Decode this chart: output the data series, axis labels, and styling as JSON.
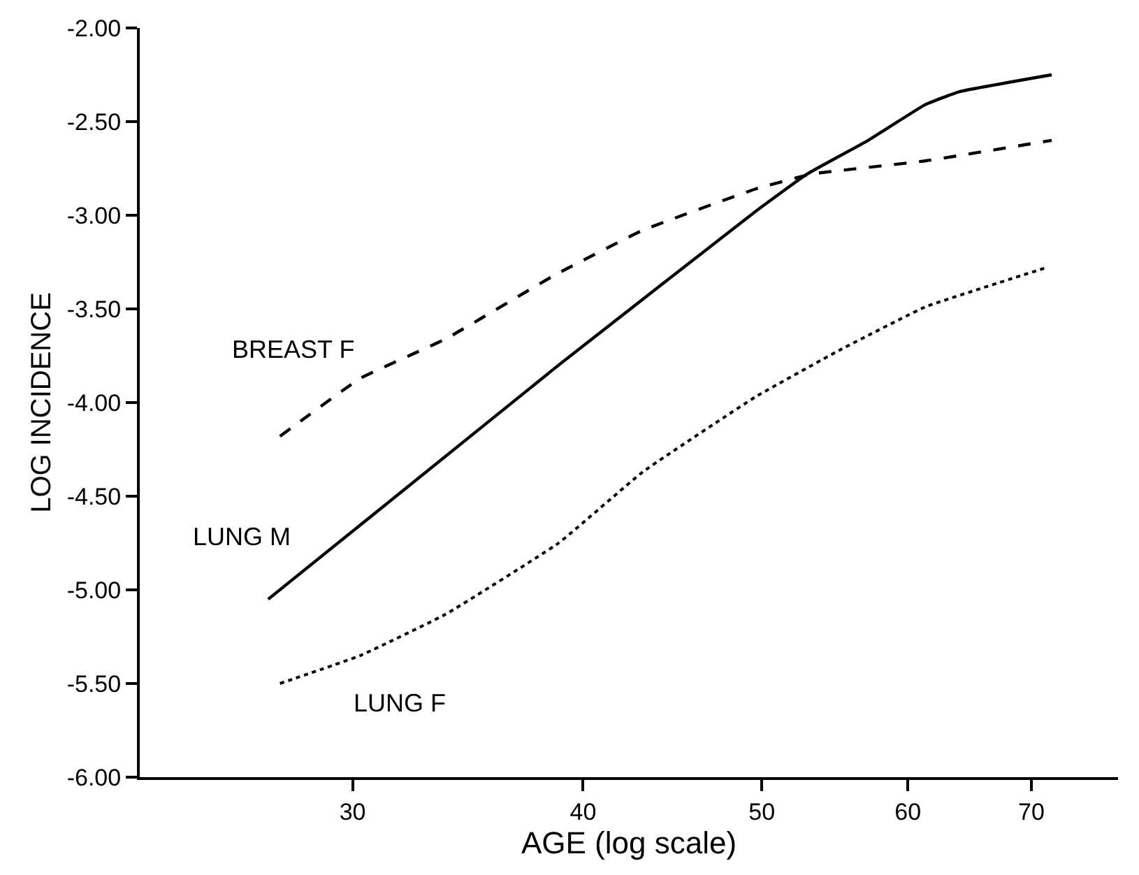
{
  "chart_data": {
    "type": "line",
    "xlabel": "AGE (log scale)",
    "ylabel": "LOG INCIDENCE",
    "log": "x",
    "grid": false,
    "legend": false,
    "marker": "none",
    "xlim": [
      23,
      78
    ],
    "xticks": [
      30,
      40,
      50,
      60,
      70
    ],
    "ylim": [
      -6.0,
      -2.0
    ],
    "yticks": [
      {
        "value": -6.0,
        "label": "-6.00"
      },
      {
        "value": -5.5,
        "label": "-5.50"
      },
      {
        "value": -5.0,
        "label": "-5.00"
      },
      {
        "value": -4.5,
        "label": "-4.50"
      },
      {
        "value": -4.0,
        "label": "-4.00"
      },
      {
        "value": -3.5,
        "label": "-3.50"
      },
      {
        "value": -3.0,
        "label": "-3.00"
      },
      {
        "value": -2.5,
        "label": "-2.50"
      },
      {
        "value": -2.0,
        "label": "-2.00"
      }
    ],
    "series": [
      {
        "name": "LUNG M",
        "color": "#000000",
        "line_style": "solid",
        "x": [
          27.0,
          38.8,
          49.6,
          52.9,
          57.1,
          61.3,
          64.0,
          71.8
        ],
        "values": [
          -5.05,
          -3.8,
          -2.98,
          -2.78,
          -2.6,
          -2.41,
          -2.34,
          -2.25
        ]
      },
      {
        "name": "BREAST F",
        "color": "#000000",
        "line_style": "dashed",
        "x": [
          27.4,
          30.3,
          33.7,
          38.6,
          43.1,
          49.6,
          53.2,
          61.3,
          71.8
        ],
        "values": [
          -4.18,
          -3.87,
          -3.66,
          -3.32,
          -3.08,
          -2.86,
          -2.78,
          -2.71,
          -2.6
        ]
      },
      {
        "name": "LUNG F",
        "color": "#000000",
        "line_style": "dotted",
        "x": [
          27.4,
          30.3,
          33.7,
          38.8,
          43.1,
          49.6,
          55.1,
          61.3,
          71.3
        ],
        "values": [
          -5.5,
          -5.35,
          -5.13,
          -4.75,
          -4.37,
          -3.97,
          -3.72,
          -3.49,
          -3.28
        ]
      }
    ]
  }
}
